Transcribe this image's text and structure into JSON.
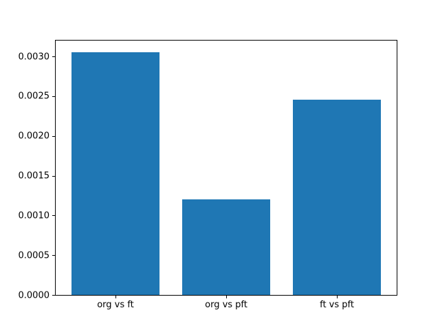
{
  "chart_data": {
    "type": "bar",
    "title": "",
    "xlabel": "",
    "ylabel": "",
    "categories": [
      "org vs ft",
      "org vs pft",
      "ft vs pft"
    ],
    "values": [
      0.00305,
      0.0012,
      0.00246
    ],
    "ylim": [
      0,
      0.0032
    ],
    "yticks": [
      0.0,
      0.0005,
      0.001,
      0.0015,
      0.002,
      0.0025,
      0.003
    ],
    "ytick_labels": [
      "0.0000",
      "0.0005",
      "0.0010",
      "0.0015",
      "0.0020",
      "0.0025",
      "0.0030"
    ],
    "grid": false,
    "legend_position": "none",
    "bar_width_fraction": 0.8,
    "colors": {
      "bar": "#1f77b4",
      "spine": "#000000",
      "background": "#ffffff",
      "tick_text": "#000000"
    }
  }
}
